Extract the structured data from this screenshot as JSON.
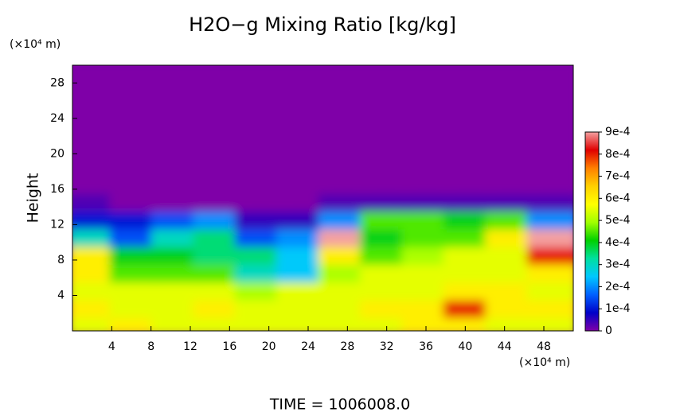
{
  "chart_data": {
    "type": "heatmap",
    "title": "H2O−g Mixing Ratio [kg/kg]",
    "y_unit": "(×10⁴ m)",
    "x_unit": "(×10⁴ m)",
    "ylabel": "Height",
    "footer": "TIME = 1006008.0",
    "xlim": [
      0,
      51
    ],
    "ylim": [
      0,
      30
    ],
    "xticks": [
      4,
      8,
      12,
      16,
      20,
      24,
      28,
      32,
      36,
      40,
      44,
      48
    ],
    "yticks": [
      4,
      8,
      12,
      16,
      20,
      24,
      28
    ],
    "zlim": [
      0,
      0.0009
    ],
    "colorscale": [
      "#7f00a8",
      "#0000c8",
      "#0060ff",
      "#00c8ff",
      "#00e0a0",
      "#00d000",
      "#a0ff00",
      "#ffff00",
      "#ffd000",
      "#ff8000",
      "#e00000",
      "#f4a0a0"
    ],
    "colorbar_ticks": [
      {
        "value": 0,
        "label": "0"
      },
      {
        "value": 0.0001,
        "label": "1e-4"
      },
      {
        "value": 0.0002,
        "label": "2e-4"
      },
      {
        "value": 0.0003,
        "label": "3e-4"
      },
      {
        "value": 0.0004,
        "label": "4e-4"
      },
      {
        "value": 0.0005,
        "label": "5e-4"
      },
      {
        "value": 0.0006,
        "label": "6e-4"
      },
      {
        "value": 0.0007,
        "label": "7e-4"
      },
      {
        "value": 0.0008,
        "label": "8e-4"
      },
      {
        "value": 0.0009,
        "label": "9e-4"
      }
    ],
    "z": [
      [
        0.00055,
        0.0006,
        0.00055,
        0.00055,
        0.00055,
        0.00055,
        0.00055,
        0.00055,
        0.0006,
        0.0006,
        0.00055,
        0.00055
      ],
      [
        0.0006,
        0.00055,
        0.00055,
        0.0006,
        0.00055,
        0.00055,
        0.00055,
        0.0006,
        0.0006,
        0.0008,
        0.0006,
        0.0006
      ],
      [
        0.00055,
        0.00055,
        0.00055,
        0.00055,
        0.0005,
        0.00055,
        0.00055,
        0.00055,
        0.00055,
        0.0006,
        0.0006,
        0.00055
      ],
      [
        0.0006,
        0.00045,
        0.00045,
        0.00045,
        0.0003,
        0.00025,
        0.0005,
        0.00055,
        0.00055,
        0.00055,
        0.00055,
        0.0006
      ],
      [
        0.0006,
        0.0004,
        0.0004,
        0.00035,
        0.00035,
        0.00025,
        0.0006,
        0.00045,
        0.0005,
        0.00055,
        0.00055,
        0.0008
      ],
      [
        0.0003,
        0.00015,
        0.0003,
        0.00035,
        0.00015,
        0.0002,
        0.0009,
        0.0004,
        0.00045,
        0.00045,
        0.0006,
        0.0009
      ],
      [
        0.0001,
        0.0001,
        0.00015,
        0.0002,
        5e-05,
        5e-05,
        0.0002,
        0.00045,
        0.00045,
        0.0004,
        0.00045,
        0.0002
      ],
      [
        3e-05,
        0,
        0,
        0,
        0,
        0,
        3e-05,
        3e-05,
        3e-05,
        3e-05,
        3e-05,
        3e-05
      ],
      [
        0,
        0,
        0,
        0,
        0,
        0,
        0,
        0,
        0,
        0,
        0,
        0
      ],
      [
        0,
        0,
        0,
        0,
        0,
        0,
        0,
        0,
        0,
        0,
        0,
        0
      ],
      [
        0,
        0,
        0,
        0,
        0,
        0,
        0,
        0,
        0,
        0,
        0,
        0
      ],
      [
        0,
        0,
        0,
        0,
        0,
        0,
        0,
        0,
        0,
        0,
        0,
        0
      ],
      [
        0,
        0,
        0,
        0,
        0,
        0,
        0,
        0,
        0,
        0,
        0,
        0
      ],
      [
        0,
        0,
        0,
        0,
        0,
        0,
        0,
        0,
        0,
        0,
        0,
        0
      ],
      [
        0,
        0,
        0,
        0,
        0,
        0,
        0,
        0,
        0,
        0,
        0,
        0
      ]
    ]
  }
}
